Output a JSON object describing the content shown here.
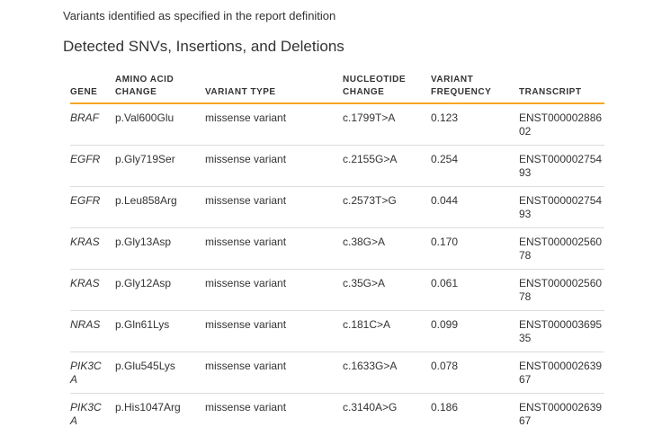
{
  "page": {
    "subtitle": "Variants identified as specified in the report definition",
    "title": "Detected SNVs, Insertions, and Deletions"
  },
  "colors": {
    "header_rule_accent": "#f5a623",
    "row_divider": "#dddddd",
    "text": "#333333",
    "background": "#ffffff"
  },
  "table": {
    "columns": [
      "GENE",
      "AMINO ACID CHANGE",
      "VARIANT TYPE",
      "NUCLEOTIDE CHANGE",
      "VARIANT FREQUENCY",
      "TRANSCRIPT"
    ],
    "rows": [
      {
        "gene": "BRAF",
        "amino_acid_change": "p.Val600Glu",
        "variant_type": "missense variant",
        "nucleotide_change": "c.1799T>A",
        "variant_frequency": "0.123",
        "transcript": "ENST00000288602"
      },
      {
        "gene": "EGFR",
        "amino_acid_change": "p.Gly719Ser",
        "variant_type": "missense variant",
        "nucleotide_change": "c.2155G>A",
        "variant_frequency": "0.254",
        "transcript": "ENST00000275493"
      },
      {
        "gene": "EGFR",
        "amino_acid_change": "p.Leu858Arg",
        "variant_type": "missense variant",
        "nucleotide_change": "c.2573T>G",
        "variant_frequency": "0.044",
        "transcript": "ENST00000275493"
      },
      {
        "gene": "KRAS",
        "amino_acid_change": "p.Gly13Asp",
        "variant_type": "missense variant",
        "nucleotide_change": "c.38G>A",
        "variant_frequency": "0.170",
        "transcript": "ENST00000256078"
      },
      {
        "gene": "KRAS",
        "amino_acid_change": "p.Gly12Asp",
        "variant_type": "missense variant",
        "nucleotide_change": "c.35G>A",
        "variant_frequency": "0.061",
        "transcript": "ENST00000256078"
      },
      {
        "gene": "NRAS",
        "amino_acid_change": "p.Gln61Lys",
        "variant_type": "missense variant",
        "nucleotide_change": "c.181C>A",
        "variant_frequency": "0.099",
        "transcript": "ENST00000369535"
      },
      {
        "gene": "PIK3CA",
        "amino_acid_change": "p.Glu545Lys",
        "variant_type": "missense variant",
        "nucleotide_change": "c.1633G>A",
        "variant_frequency": "0.078",
        "transcript": "ENST00000263967"
      },
      {
        "gene": "PIK3CA",
        "amino_acid_change": "p.His1047Arg",
        "variant_type": "missense variant",
        "nucleotide_change": "c.3140A>G",
        "variant_frequency": "0.186",
        "transcript": "ENST00000263967"
      }
    ]
  }
}
